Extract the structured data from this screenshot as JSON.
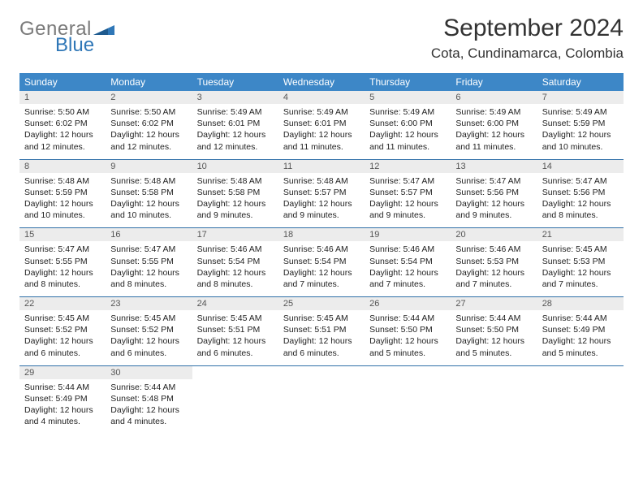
{
  "logo": {
    "general": "General",
    "blue": "Blue"
  },
  "title": "September 2024",
  "location": "Cota, Cundinamarca, Colombia",
  "dow": [
    "Sunday",
    "Monday",
    "Tuesday",
    "Wednesday",
    "Thursday",
    "Friday",
    "Saturday"
  ],
  "colors": {
    "header_bg": "#3d87c7",
    "header_text": "#ffffff",
    "daynum_bg": "#ececec",
    "rule": "#2f6fa8",
    "logo_gray": "#7a7a7a",
    "logo_blue": "#2f77b7"
  },
  "weeks": [
    [
      {
        "n": "1",
        "sunrise": "5:50 AM",
        "sunset": "6:02 PM",
        "dl": "12 hours and 12 minutes."
      },
      {
        "n": "2",
        "sunrise": "5:50 AM",
        "sunset": "6:02 PM",
        "dl": "12 hours and 12 minutes."
      },
      {
        "n": "3",
        "sunrise": "5:49 AM",
        "sunset": "6:01 PM",
        "dl": "12 hours and 12 minutes."
      },
      {
        "n": "4",
        "sunrise": "5:49 AM",
        "sunset": "6:01 PM",
        "dl": "12 hours and 11 minutes."
      },
      {
        "n": "5",
        "sunrise": "5:49 AM",
        "sunset": "6:00 PM",
        "dl": "12 hours and 11 minutes."
      },
      {
        "n": "6",
        "sunrise": "5:49 AM",
        "sunset": "6:00 PM",
        "dl": "12 hours and 11 minutes."
      },
      {
        "n": "7",
        "sunrise": "5:49 AM",
        "sunset": "5:59 PM",
        "dl": "12 hours and 10 minutes."
      }
    ],
    [
      {
        "n": "8",
        "sunrise": "5:48 AM",
        "sunset": "5:59 PM",
        "dl": "12 hours and 10 minutes."
      },
      {
        "n": "9",
        "sunrise": "5:48 AM",
        "sunset": "5:58 PM",
        "dl": "12 hours and 10 minutes."
      },
      {
        "n": "10",
        "sunrise": "5:48 AM",
        "sunset": "5:58 PM",
        "dl": "12 hours and 9 minutes."
      },
      {
        "n": "11",
        "sunrise": "5:48 AM",
        "sunset": "5:57 PM",
        "dl": "12 hours and 9 minutes."
      },
      {
        "n": "12",
        "sunrise": "5:47 AM",
        "sunset": "5:57 PM",
        "dl": "12 hours and 9 minutes."
      },
      {
        "n": "13",
        "sunrise": "5:47 AM",
        "sunset": "5:56 PM",
        "dl": "12 hours and 9 minutes."
      },
      {
        "n": "14",
        "sunrise": "5:47 AM",
        "sunset": "5:56 PM",
        "dl": "12 hours and 8 minutes."
      }
    ],
    [
      {
        "n": "15",
        "sunrise": "5:47 AM",
        "sunset": "5:55 PM",
        "dl": "12 hours and 8 minutes."
      },
      {
        "n": "16",
        "sunrise": "5:47 AM",
        "sunset": "5:55 PM",
        "dl": "12 hours and 8 minutes."
      },
      {
        "n": "17",
        "sunrise": "5:46 AM",
        "sunset": "5:54 PM",
        "dl": "12 hours and 8 minutes."
      },
      {
        "n": "18",
        "sunrise": "5:46 AM",
        "sunset": "5:54 PM",
        "dl": "12 hours and 7 minutes."
      },
      {
        "n": "19",
        "sunrise": "5:46 AM",
        "sunset": "5:54 PM",
        "dl": "12 hours and 7 minutes."
      },
      {
        "n": "20",
        "sunrise": "5:46 AM",
        "sunset": "5:53 PM",
        "dl": "12 hours and 7 minutes."
      },
      {
        "n": "21",
        "sunrise": "5:45 AM",
        "sunset": "5:53 PM",
        "dl": "12 hours and 7 minutes."
      }
    ],
    [
      {
        "n": "22",
        "sunrise": "5:45 AM",
        "sunset": "5:52 PM",
        "dl": "12 hours and 6 minutes."
      },
      {
        "n": "23",
        "sunrise": "5:45 AM",
        "sunset": "5:52 PM",
        "dl": "12 hours and 6 minutes."
      },
      {
        "n": "24",
        "sunrise": "5:45 AM",
        "sunset": "5:51 PM",
        "dl": "12 hours and 6 minutes."
      },
      {
        "n": "25",
        "sunrise": "5:45 AM",
        "sunset": "5:51 PM",
        "dl": "12 hours and 6 minutes."
      },
      {
        "n": "26",
        "sunrise": "5:44 AM",
        "sunset": "5:50 PM",
        "dl": "12 hours and 5 minutes."
      },
      {
        "n": "27",
        "sunrise": "5:44 AM",
        "sunset": "5:50 PM",
        "dl": "12 hours and 5 minutes."
      },
      {
        "n": "28",
        "sunrise": "5:44 AM",
        "sunset": "5:49 PM",
        "dl": "12 hours and 5 minutes."
      }
    ],
    [
      {
        "n": "29",
        "sunrise": "5:44 AM",
        "sunset": "5:49 PM",
        "dl": "12 hours and 4 minutes."
      },
      {
        "n": "30",
        "sunrise": "5:44 AM",
        "sunset": "5:48 PM",
        "dl": "12 hours and 4 minutes."
      },
      null,
      null,
      null,
      null,
      null
    ]
  ],
  "labels": {
    "sunrise": "Sunrise:",
    "sunset": "Sunset:",
    "daylight": "Daylight:"
  }
}
